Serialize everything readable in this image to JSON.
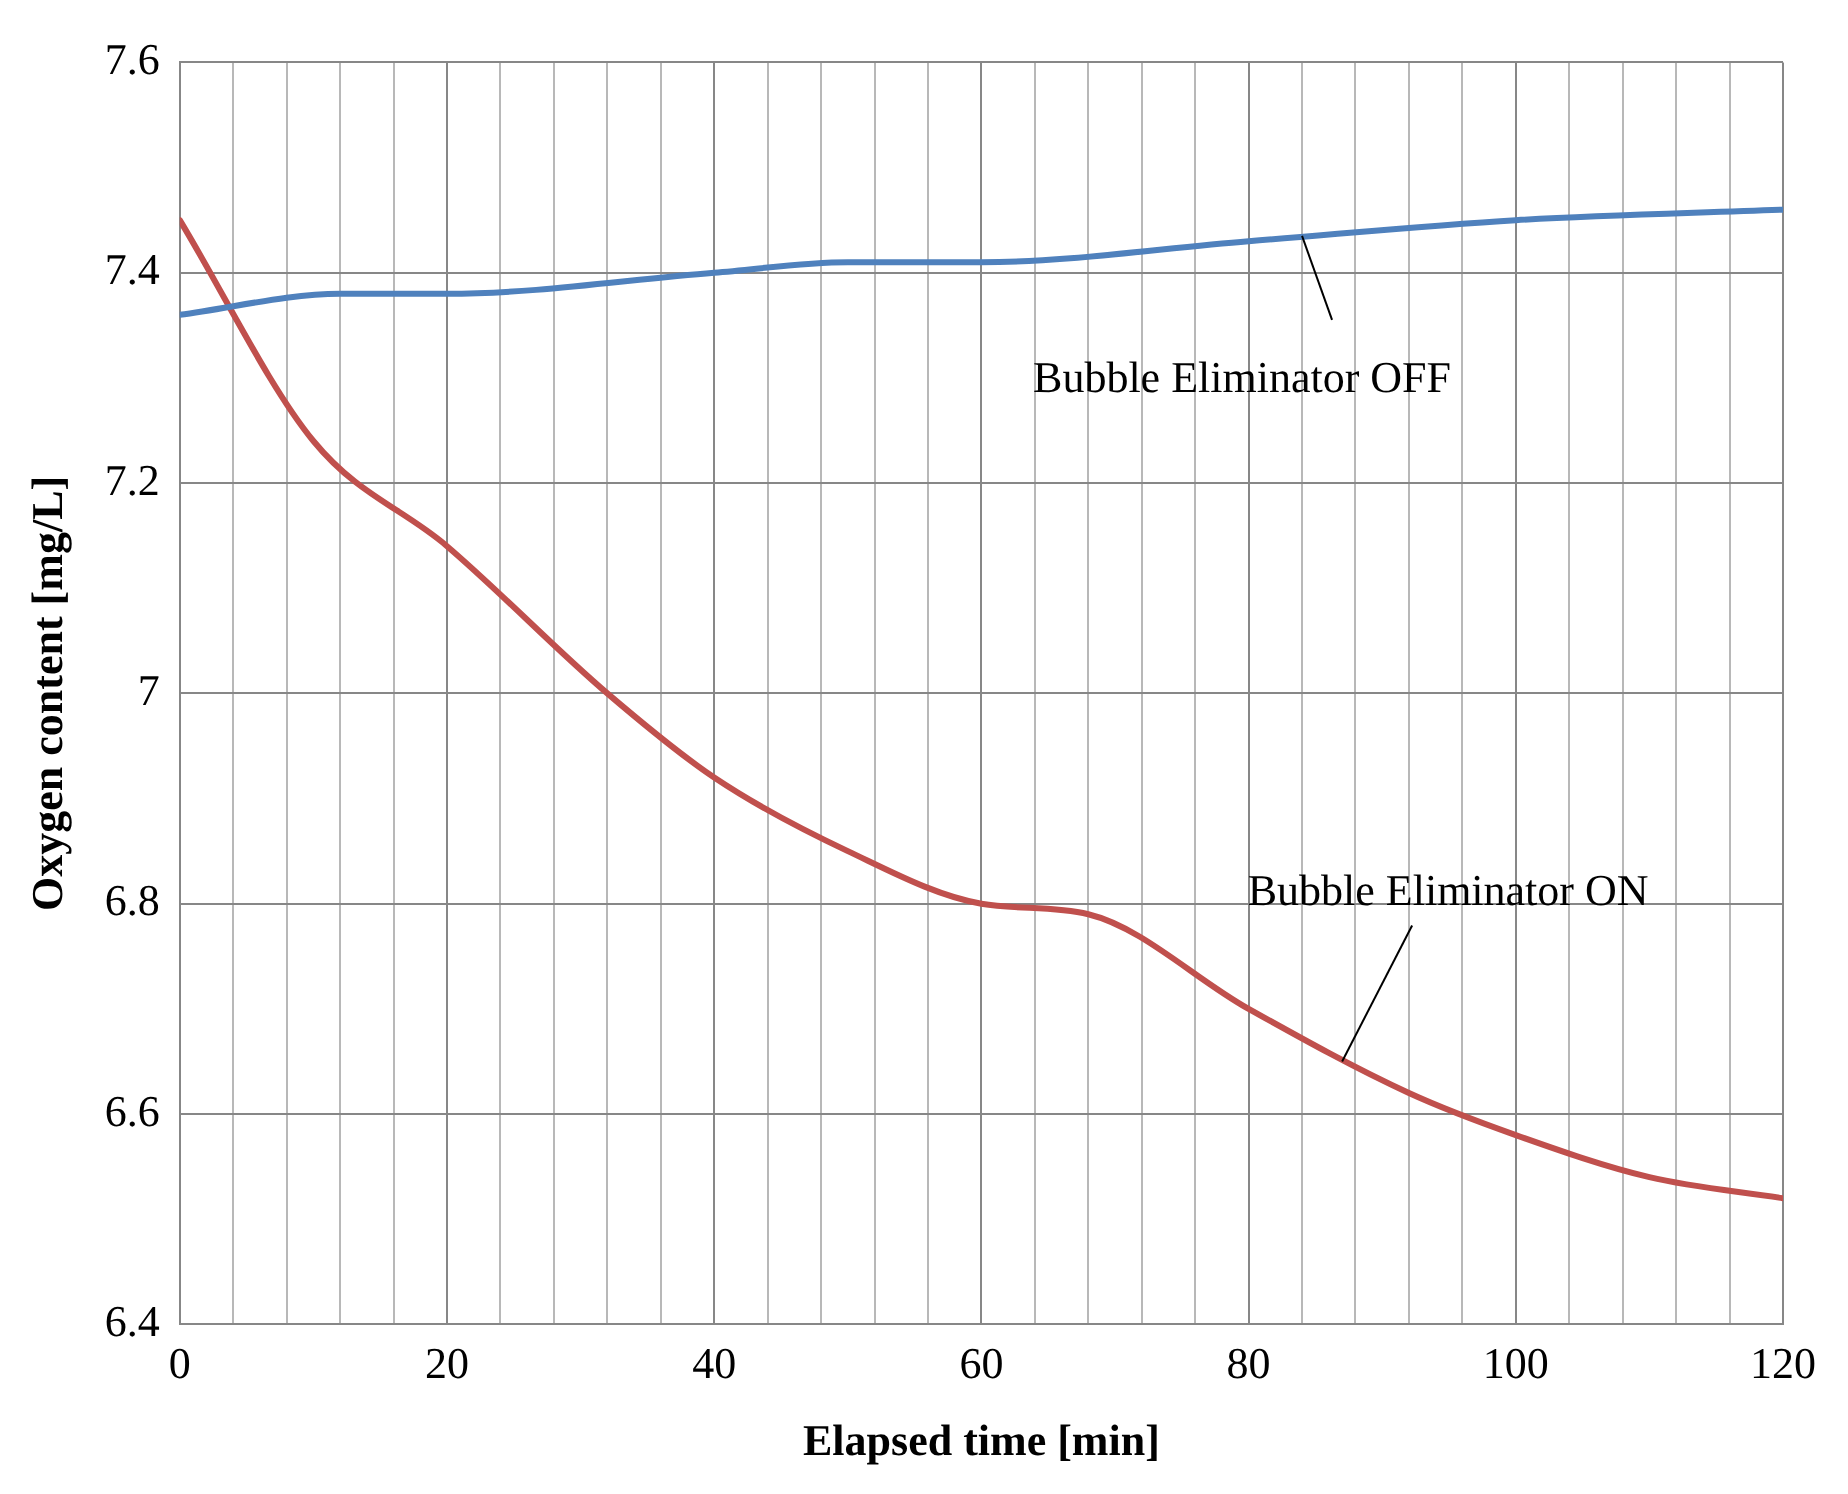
{
  "chart_data": {
    "type": "line",
    "xlabel": "Elapsed time [min]",
    "ylabel": "Oxygen content [mg/L]",
    "xlim": [
      0,
      120
    ],
    "xticks": [
      0,
      {
        "value": 4,
        "label": null
      },
      {
        "value": 8,
        "label": null
      },
      {
        "value": 12,
        "label": null
      },
      {
        "value": 16,
        "label": null
      },
      20,
      {
        "value": 24,
        "label": null
      },
      {
        "value": 28,
        "label": null
      },
      {
        "value": 32,
        "label": null
      },
      {
        "value": 36,
        "label": null
      },
      40,
      {
        "value": 44,
        "label": null
      },
      {
        "value": 48,
        "label": null
      },
      {
        "value": 52,
        "label": null
      },
      {
        "value": 56,
        "label": null
      },
      60,
      {
        "value": 64,
        "label": null
      },
      {
        "value": 68,
        "label": null
      },
      {
        "value": 72,
        "label": null
      },
      {
        "value": 76,
        "label": null
      },
      80,
      {
        "value": 84,
        "label": null
      },
      {
        "value": 88,
        "label": null
      },
      {
        "value": 92,
        "label": null
      },
      {
        "value": 96,
        "label": null
      },
      100,
      {
        "value": 104,
        "label": null
      },
      {
        "value": 108,
        "label": null
      },
      {
        "value": 112,
        "label": null
      },
      {
        "value": 116,
        "label": null
      },
      120
    ],
    "ylim": [
      6.4,
      7.6
    ],
    "yticks": [
      6.4,
      6.6,
      6.8,
      7,
      7.2,
      7.4,
      7.6
    ],
    "grid": true,
    "legend": false,
    "marker": "none",
    "line_style": "solid",
    "series": [
      {
        "color": "#4f81bd",
        "x": [
          0,
          12,
          20,
          40,
          50,
          60,
          80,
          100,
          120
        ],
        "values": [
          7.36,
          7.38,
          7.38,
          7.4,
          7.41,
          7.41,
          7.43,
          7.45,
          7.46
        ]
      },
      {
        "color": "#c0504d",
        "x": [
          0,
          10,
          20,
          32,
          40,
          50,
          60,
          68,
          80,
          92,
          100,
          110,
          120
        ],
        "values": [
          7.45,
          7.24,
          7.14,
          7.0,
          6.92,
          6.85,
          6.8,
          6.79,
          6.7,
          6.62,
          6.58,
          6.54,
          6.52
        ]
      }
    ],
    "annotations": [
      {
        "text": "Bubble Eliminator OFF",
        "x": 84,
        "y": 7.435
      },
      {
        "text": "Bubble Eliminator ON",
        "x": 87,
        "y": 6.65
      }
    ]
  }
}
